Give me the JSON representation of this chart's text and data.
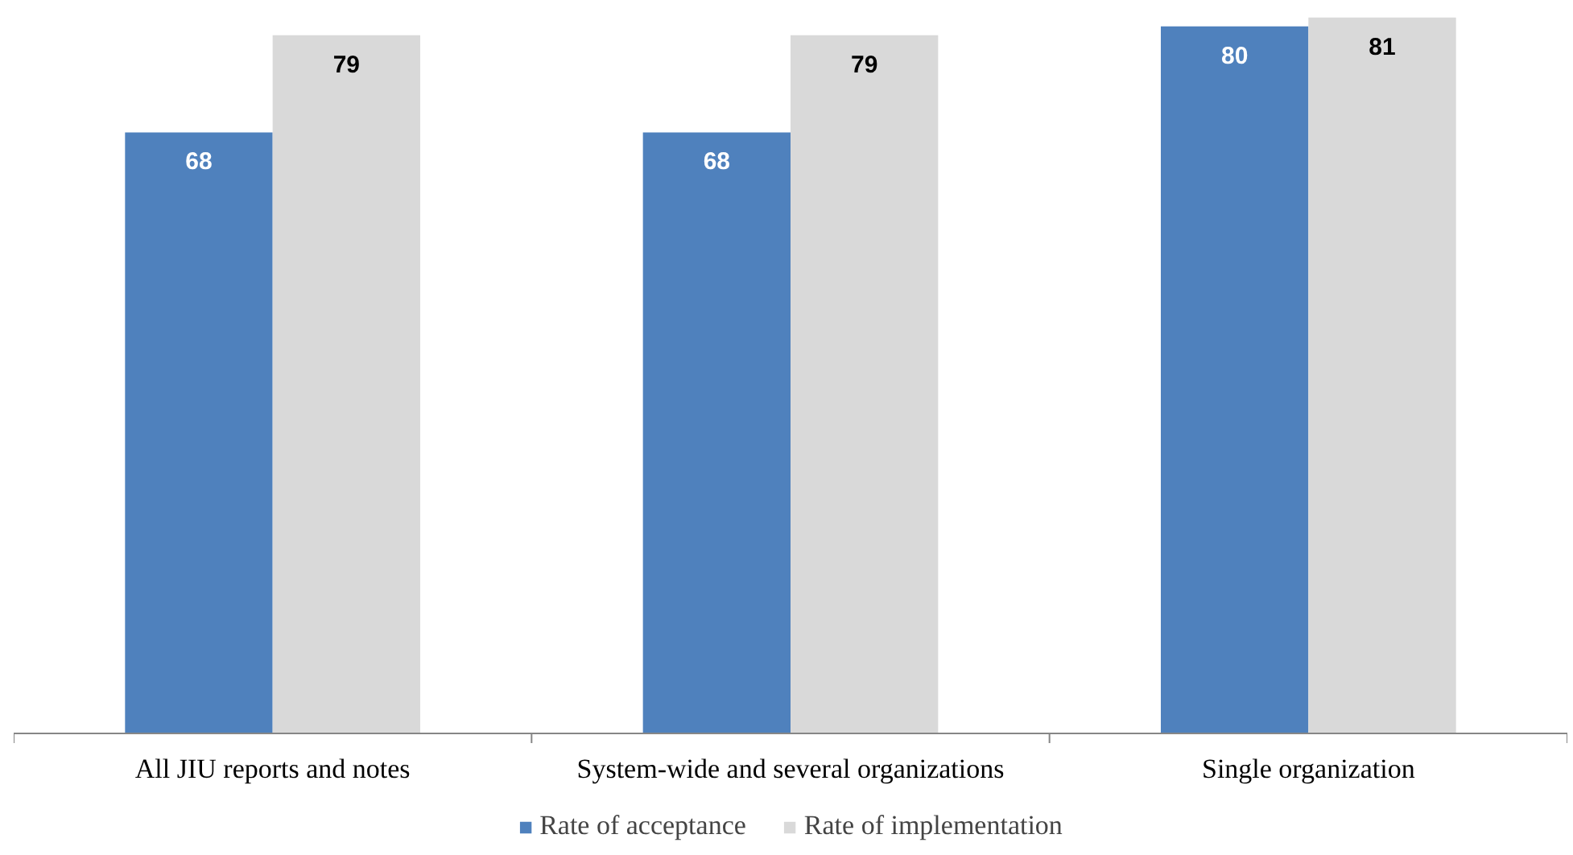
{
  "chart_data": {
    "type": "bar",
    "categories": [
      "All JIU reports and notes",
      "System-wide and several organizations",
      "Single organization"
    ],
    "series": [
      {
        "name": "Rate of acceptance",
        "color": "#4f81bd",
        "values": [
          68,
          68,
          80
        ]
      },
      {
        "name": "Rate of implementation",
        "color": "#d9d9d9",
        "values": [
          79,
          79,
          81
        ]
      }
    ],
    "data_labels": true,
    "legend": "bottom",
    "grid": false
  }
}
